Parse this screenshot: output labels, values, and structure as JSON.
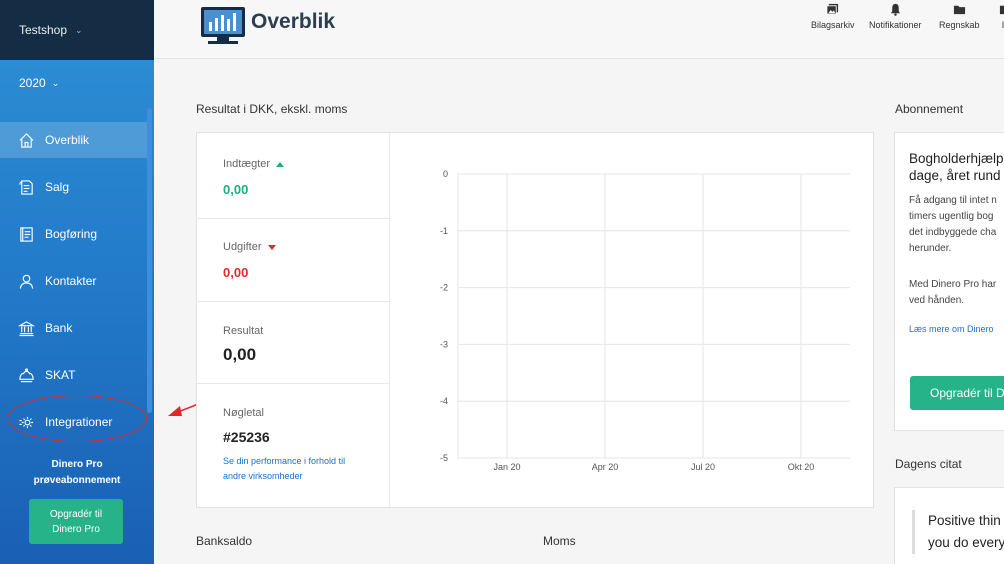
{
  "sidebar": {
    "shop_name": "Testshop",
    "year": "2020",
    "items": [
      {
        "label": "Overblik",
        "icon": "home-icon"
      },
      {
        "label": "Salg",
        "icon": "invoice-icon"
      },
      {
        "label": "Bogføring",
        "icon": "ledger-icon"
      },
      {
        "label": "Kontakter",
        "icon": "person-icon"
      },
      {
        "label": "Bank",
        "icon": "bank-icon"
      },
      {
        "label": "SKAT",
        "icon": "crown-icon"
      },
      {
        "label": "Integrationer",
        "icon": "gear-icon"
      }
    ],
    "pro_line1": "Dinero Pro",
    "pro_line2": "prøveabonnement",
    "upgrade_line1": "Opgradér til",
    "upgrade_line2": "Dinero Pro"
  },
  "header": {
    "title": "Overblik",
    "actions": [
      {
        "label": "Bilagsarkiv",
        "icon": "images-icon"
      },
      {
        "label": "Notifikationer",
        "icon": "bell-icon"
      },
      {
        "label": "Regnskab",
        "icon": "folder-icon"
      },
      {
        "label": "In",
        "icon": "folder-icon"
      }
    ]
  },
  "result": {
    "heading": "Resultat i DKK, ekskl. moms",
    "income_label": "Indtægter",
    "income_value": "0,00",
    "expenses_label": "Udgifter",
    "expenses_value": "0,00",
    "result_label": "Resultat",
    "result_value": "0,00",
    "key_label": "Nøgletal",
    "key_value": "#25236",
    "key_link_line1": "Se din performance i forhold til",
    "key_link_line2": "andre virksomheder"
  },
  "chart_data": {
    "type": "line",
    "x": [
      "Jan 20",
      "Apr 20",
      "Jul 20",
      "Okt 20"
    ],
    "yticks": [
      "0",
      "-1",
      "-2",
      "-3",
      "-4",
      "-5"
    ],
    "ylim": [
      -5,
      0
    ],
    "grid": true,
    "series": []
  },
  "subscription": {
    "heading": "Abonnement",
    "title_line1": "Bogholderhjælp",
    "title_line2": "dage, året rund",
    "text_line1": "Få adgang til intet n",
    "text_line2": "timers ugentlig bog",
    "text_line3": "det indbyggede cha",
    "text_line4": "herunder.",
    "text2_line1": "Med Dinero Pro har",
    "text2_line2": "ved hånden.",
    "link": "Læs mere om Dinero",
    "upgrade": "Opgradér til Di"
  },
  "quote": {
    "heading": "Dagens citat",
    "line1": "Positive thin",
    "line2": "you do every"
  },
  "bottom": {
    "banksaldo": "Banksaldo",
    "moms": "Moms"
  },
  "colors": {
    "sidebar_top": "#142d44",
    "sidebar": "#2178c7",
    "accent_green": "#27b38a",
    "positive": "#1fae7c",
    "negative": "#e0282c",
    "link": "#1b6fd1"
  }
}
